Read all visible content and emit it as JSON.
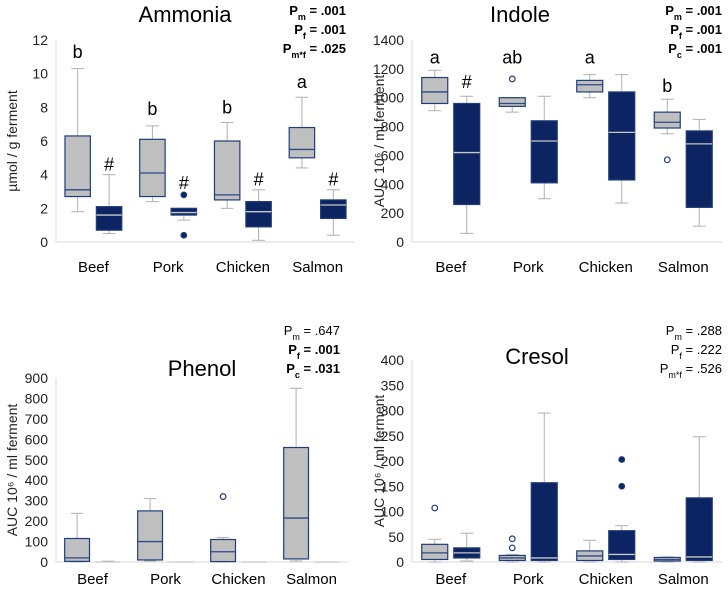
{
  "colors": {
    "gray_fill": "#bfbfbf",
    "navy_fill": "#0c2461",
    "box_stroke": "#1f3d7a",
    "gray_whisker": "#b0b0b0",
    "axis": "#d9d9d9",
    "text": "#000000"
  },
  "chart_data": [
    {
      "type": "box",
      "title": "Ammonia",
      "ylabel": "µmol / g ferment",
      "ylim": [
        0,
        12
      ],
      "yticks": [
        "0",
        "2",
        "4",
        "6",
        "8",
        "10",
        "12"
      ],
      "categories": [
        "Beef",
        "Pork",
        "Chicken",
        "Salmon"
      ],
      "series": [
        {
          "name": "gray",
          "boxes": [
            {
              "min": 1.8,
              "q1": 2.7,
              "median": 3.1,
              "q3": 6.3,
              "max": 10.3,
              "outliers": []
            },
            {
              "min": 2.4,
              "q1": 2.7,
              "median": 4.1,
              "q3": 6.1,
              "max": 6.9,
              "outliers": []
            },
            {
              "min": 2.0,
              "q1": 2.5,
              "median": 2.8,
              "q3": 6.0,
              "max": 7.1,
              "outliers": []
            },
            {
              "min": 4.4,
              "q1": 5.0,
              "median": 5.5,
              "q3": 6.8,
              "max": 8.6,
              "outliers": []
            }
          ]
        },
        {
          "name": "navy",
          "boxes": [
            {
              "min": 0.5,
              "q1": 0.7,
              "median": 1.6,
              "q3": 2.1,
              "max": 4.0,
              "outliers": []
            },
            {
              "min": 1.3,
              "q1": 1.6,
              "median": 1.75,
              "q3": 2.0,
              "max": 2.0,
              "outliers": [
                2.8,
                0.4
              ]
            },
            {
              "min": 0.1,
              "q1": 0.9,
              "median": 1.8,
              "q3": 2.4,
              "max": 3.1,
              "outliers": []
            },
            {
              "min": 0.4,
              "q1": 1.4,
              "median": 2.2,
              "q3": 2.5,
              "max": 3.1,
              "outliers": []
            }
          ]
        }
      ],
      "annotations": [
        {
          "category": 0,
          "series": 0,
          "text": "b",
          "at": 11.3
        },
        {
          "category": 0,
          "series": 1,
          "text": "#",
          "at": 4.6
        },
        {
          "category": 1,
          "series": 0,
          "text": "b",
          "at": 7.9
        },
        {
          "category": 1,
          "series": 1,
          "text": "#",
          "at": 3.5
        },
        {
          "category": 2,
          "series": 0,
          "text": "b",
          "at": 8.0
        },
        {
          "category": 2,
          "series": 1,
          "text": "#",
          "at": 3.7
        },
        {
          "category": 3,
          "series": 0,
          "text": "a",
          "at": 9.5
        },
        {
          "category": 3,
          "series": 1,
          "text": "#",
          "at": 3.7
        }
      ],
      "stats": [
        {
          "label": "P",
          "sub": "m",
          "value": " = .001",
          "bold": true
        },
        {
          "label": "P",
          "sub": "f",
          "value": " = .001",
          "bold": true
        },
        {
          "label": "P",
          "sub": "m*f",
          "value": " = .025",
          "bold": true
        }
      ]
    },
    {
      "type": "box",
      "title": "Indole",
      "ylabel": "AUC 10⁶ / ml ferment",
      "ylim": [
        0,
        1400
      ],
      "yticks": [
        "0",
        "200",
        "400",
        "600",
        "800",
        "1000",
        "1200",
        "1400"
      ],
      "categories": [
        "Beef",
        "Pork",
        "Chicken",
        "Salmon"
      ],
      "series": [
        {
          "name": "gray",
          "boxes": [
            {
              "min": 910,
              "q1": 960,
              "median": 1040,
              "q3": 1140,
              "max": 1190,
              "outliers": []
            },
            {
              "min": 900,
              "q1": 940,
              "median": 960,
              "q3": 1000,
              "max": 1000,
              "outliers": [
                1130
              ]
            },
            {
              "min": 1000,
              "q1": 1040,
              "median": 1090,
              "q3": 1120,
              "max": 1160,
              "outliers": []
            },
            {
              "min": 750,
              "q1": 790,
              "median": 830,
              "q3": 900,
              "max": 990,
              "outliers": [
                570
              ]
            }
          ]
        },
        {
          "name": "navy",
          "boxes": [
            {
              "min": 60,
              "q1": 260,
              "median": 620,
              "q3": 960,
              "max": 1010,
              "outliers": []
            },
            {
              "min": 300,
              "q1": 410,
              "median": 700,
              "q3": 840,
              "max": 1010,
              "outliers": []
            },
            {
              "min": 270,
              "q1": 430,
              "median": 760,
              "q3": 1040,
              "max": 1160,
              "outliers": []
            },
            {
              "min": 110,
              "q1": 240,
              "median": 680,
              "q3": 770,
              "max": 850,
              "outliers": []
            }
          ]
        }
      ],
      "annotations": [
        {
          "category": 0,
          "series": 0,
          "text": "a",
          "at": 1280
        },
        {
          "category": 0,
          "series": 1,
          "text": "#",
          "at": 1110
        },
        {
          "category": 1,
          "series": 0,
          "text": "ab",
          "at": 1280
        },
        {
          "category": 2,
          "series": 0,
          "text": "a",
          "at": 1280
        },
        {
          "category": 3,
          "series": 0,
          "text": "b",
          "at": 1080
        }
      ],
      "stats": [
        {
          "label": "P",
          "sub": "m",
          "value": " = .001",
          "bold": true
        },
        {
          "label": "P",
          "sub": "f",
          "value": " = .001",
          "bold": true
        },
        {
          "label": "P",
          "sub": "c",
          "value": " = .001",
          "bold": true
        }
      ]
    },
    {
      "type": "box",
      "title": "Phenol",
      "ylabel": "AUC 10⁶ / ml ferment",
      "ylim": [
        0,
        900
      ],
      "yticks": [
        "0",
        "100",
        "200",
        "300",
        "400",
        "500",
        "600",
        "700",
        "800",
        "900"
      ],
      "categories": [
        "Beef",
        "Pork",
        "Chicken",
        "Salmon"
      ],
      "series": [
        {
          "name": "gray",
          "boxes": [
            {
              "min": 0,
              "q1": 3,
              "median": 20,
              "q3": 115,
              "max": 238,
              "outliers": []
            },
            {
              "min": 5,
              "q1": 10,
              "median": 100,
              "q3": 250,
              "max": 310,
              "outliers": []
            },
            {
              "min": 0,
              "q1": 2,
              "median": 50,
              "q3": 110,
              "max": 120,
              "outliers": [
                320
              ]
            },
            {
              "min": 5,
              "q1": 15,
              "median": 215,
              "q3": 560,
              "max": 850,
              "outliers": []
            }
          ]
        },
        {
          "name": "navy",
          "boxes": [
            {
              "min": 0,
              "q1": 0,
              "median": 0,
              "q3": 2,
              "max": 4,
              "outliers": []
            },
            {
              "min": 0,
              "q1": 0,
              "median": 0,
              "q3": 0,
              "max": 0,
              "outliers": []
            },
            {
              "min": 0,
              "q1": 0,
              "median": 0,
              "q3": 0,
              "max": 0,
              "outliers": []
            },
            {
              "min": 0,
              "q1": 0,
              "median": 0,
              "q3": 0,
              "max": 0,
              "outliers": []
            }
          ]
        }
      ],
      "annotations": [],
      "stats": [
        {
          "label": "P",
          "sub": "m",
          "value": " = .647",
          "bold": false
        },
        {
          "label": "P",
          "sub": "f",
          "value": " = .001",
          "bold": true
        },
        {
          "label": "P",
          "sub": "c",
          "value": " = .031",
          "bold": true
        }
      ]
    },
    {
      "type": "box",
      "title": "Cresol",
      "ylabel": "AUC 10⁶ / ml ferment",
      "ylim": [
        0,
        400
      ],
      "yticks": [
        "0",
        "50",
        "100",
        "150",
        "200",
        "250",
        "300",
        "350",
        "400"
      ],
      "categories": [
        "Beef",
        "Pork",
        "Chicken",
        "Salmon"
      ],
      "series": [
        {
          "name": "gray",
          "boxes": [
            {
              "min": 0,
              "q1": 5,
              "median": 18,
              "q3": 35,
              "max": 45,
              "outliers": [
                107
              ]
            },
            {
              "min": 0,
              "q1": 3,
              "median": 8,
              "q3": 13,
              "max": 15,
              "outliers": [
                46,
                28
              ]
            },
            {
              "min": 0,
              "q1": 3,
              "median": 12,
              "q3": 22,
              "max": 43,
              "outliers": []
            },
            {
              "min": 0,
              "q1": 2,
              "median": 5,
              "q3": 9,
              "max": 10,
              "outliers": []
            }
          ]
        },
        {
          "name": "navy",
          "boxes": [
            {
              "min": 2,
              "q1": 8,
              "median": 18,
              "q3": 28,
              "max": 57,
              "outliers": []
            },
            {
              "min": 0,
              "q1": 3,
              "median": 8,
              "q3": 157,
              "max": 295,
              "outliers": []
            },
            {
              "min": 0,
              "q1": 5,
              "median": 15,
              "q3": 62,
              "max": 72,
              "outliers": [
                203,
                150
              ]
            },
            {
              "min": 0,
              "q1": 3,
              "median": 10,
              "q3": 127,
              "max": 248,
              "outliers": []
            }
          ]
        }
      ],
      "annotations": [],
      "stats": [
        {
          "label": "P",
          "sub": "m",
          "value": " = .288",
          "bold": false
        },
        {
          "label": "P",
          "sub": "f",
          "value": " = .222",
          "bold": false
        },
        {
          "label": "P",
          "sub": "m*f",
          "value": " = .526",
          "bold": false
        }
      ]
    }
  ]
}
